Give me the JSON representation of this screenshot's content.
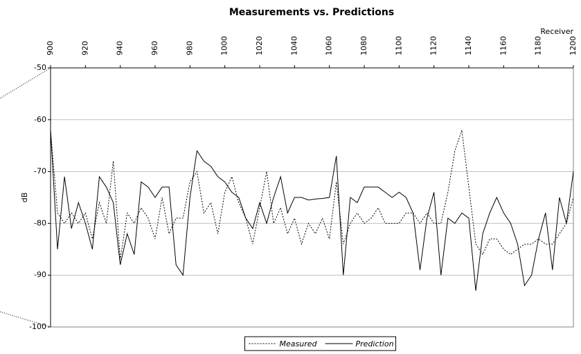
{
  "chart_data": {
    "type": "line",
    "title": "Measurements vs. Predictions",
    "x_label": "Receiver",
    "y_label": "dB",
    "x": [
      900,
      904,
      908,
      912,
      916,
      920,
      924,
      928,
      932,
      936,
      940,
      944,
      948,
      952,
      956,
      960,
      964,
      968,
      972,
      976,
      980,
      984,
      988,
      992,
      996,
      1000,
      1004,
      1008,
      1012,
      1016,
      1020,
      1024,
      1028,
      1032,
      1036,
      1040,
      1044,
      1048,
      1052,
      1056,
      1060,
      1064,
      1068,
      1072,
      1076,
      1080,
      1084,
      1088,
      1092,
      1096,
      1100,
      1104,
      1108,
      1112,
      1116,
      1120,
      1124,
      1128,
      1132,
      1136,
      1140,
      1144,
      1148,
      1152,
      1156,
      1160,
      1164,
      1168,
      1172,
      1176,
      1180,
      1184,
      1188,
      1192,
      1196,
      1200
    ],
    "series": [
      {
        "name": "Measured",
        "color": "#000000",
        "dashed": true,
        "values": [
          -62,
          -78,
          -80,
          -78,
          -80,
          -78,
          -83,
          -76,
          -80,
          -68,
          -87,
          -78,
          -80,
          -77,
          -79,
          -83,
          -75,
          -82,
          -79,
          -79,
          -72,
          -70,
          -78,
          -76,
          -82,
          -74,
          -71,
          -76,
          -79,
          -84,
          -77,
          -70,
          -80,
          -77,
          -82,
          -79,
          -84,
          -80,
          -82,
          -79,
          -83,
          -72,
          -84,
          -80,
          -78,
          -80,
          -79,
          -77,
          -80,
          -80,
          -80,
          -78,
          -78,
          -80,
          -78,
          -80,
          -80,
          -74,
          -66,
          -62,
          -73,
          -84,
          -86,
          -83,
          -83,
          -85,
          -86,
          -85,
          -84,
          -84,
          -83,
          -84,
          -84,
          -82,
          -80,
          -75
        ]
      },
      {
        "name": "Prediction",
        "color": "#000000",
        "dashed": false,
        "values": [
          -62,
          -85,
          -71,
          -81,
          -76,
          -80,
          -85,
          -71,
          -73,
          -76,
          -88,
          -82,
          -86,
          -72,
          -73,
          -75,
          -73,
          -73,
          -88,
          -90,
          -75,
          -66,
          -68,
          -69,
          -71,
          -72,
          -74,
          -75,
          -79,
          -81,
          -76,
          -80,
          -75,
          -71,
          -78,
          -75,
          -75,
          -75.5,
          -75.3,
          -75.2,
          -75,
          -67,
          -90,
          -75,
          -76,
          -73,
          -73,
          -73,
          -74,
          -75,
          -74,
          -75,
          -78,
          -89,
          -79,
          -74,
          -90,
          -79,
          -80,
          -78,
          -79,
          -93,
          -82,
          -78,
          -75,
          -78,
          -80,
          -84,
          -92,
          -90,
          -83,
          -78,
          -89,
          -75,
          -80,
          -70
        ]
      }
    ],
    "xlim": [
      900,
      1200
    ],
    "xticks": [
      900,
      920,
      940,
      960,
      980,
      1000,
      1020,
      1040,
      1060,
      1080,
      1100,
      1120,
      1140,
      1160,
      1180,
      1200
    ],
    "ylim": [
      -100,
      -50
    ],
    "yticks": [
      -50,
      -60,
      -70,
      -80,
      -90,
      -100
    ],
    "grid": true,
    "legend": "bottom"
  }
}
